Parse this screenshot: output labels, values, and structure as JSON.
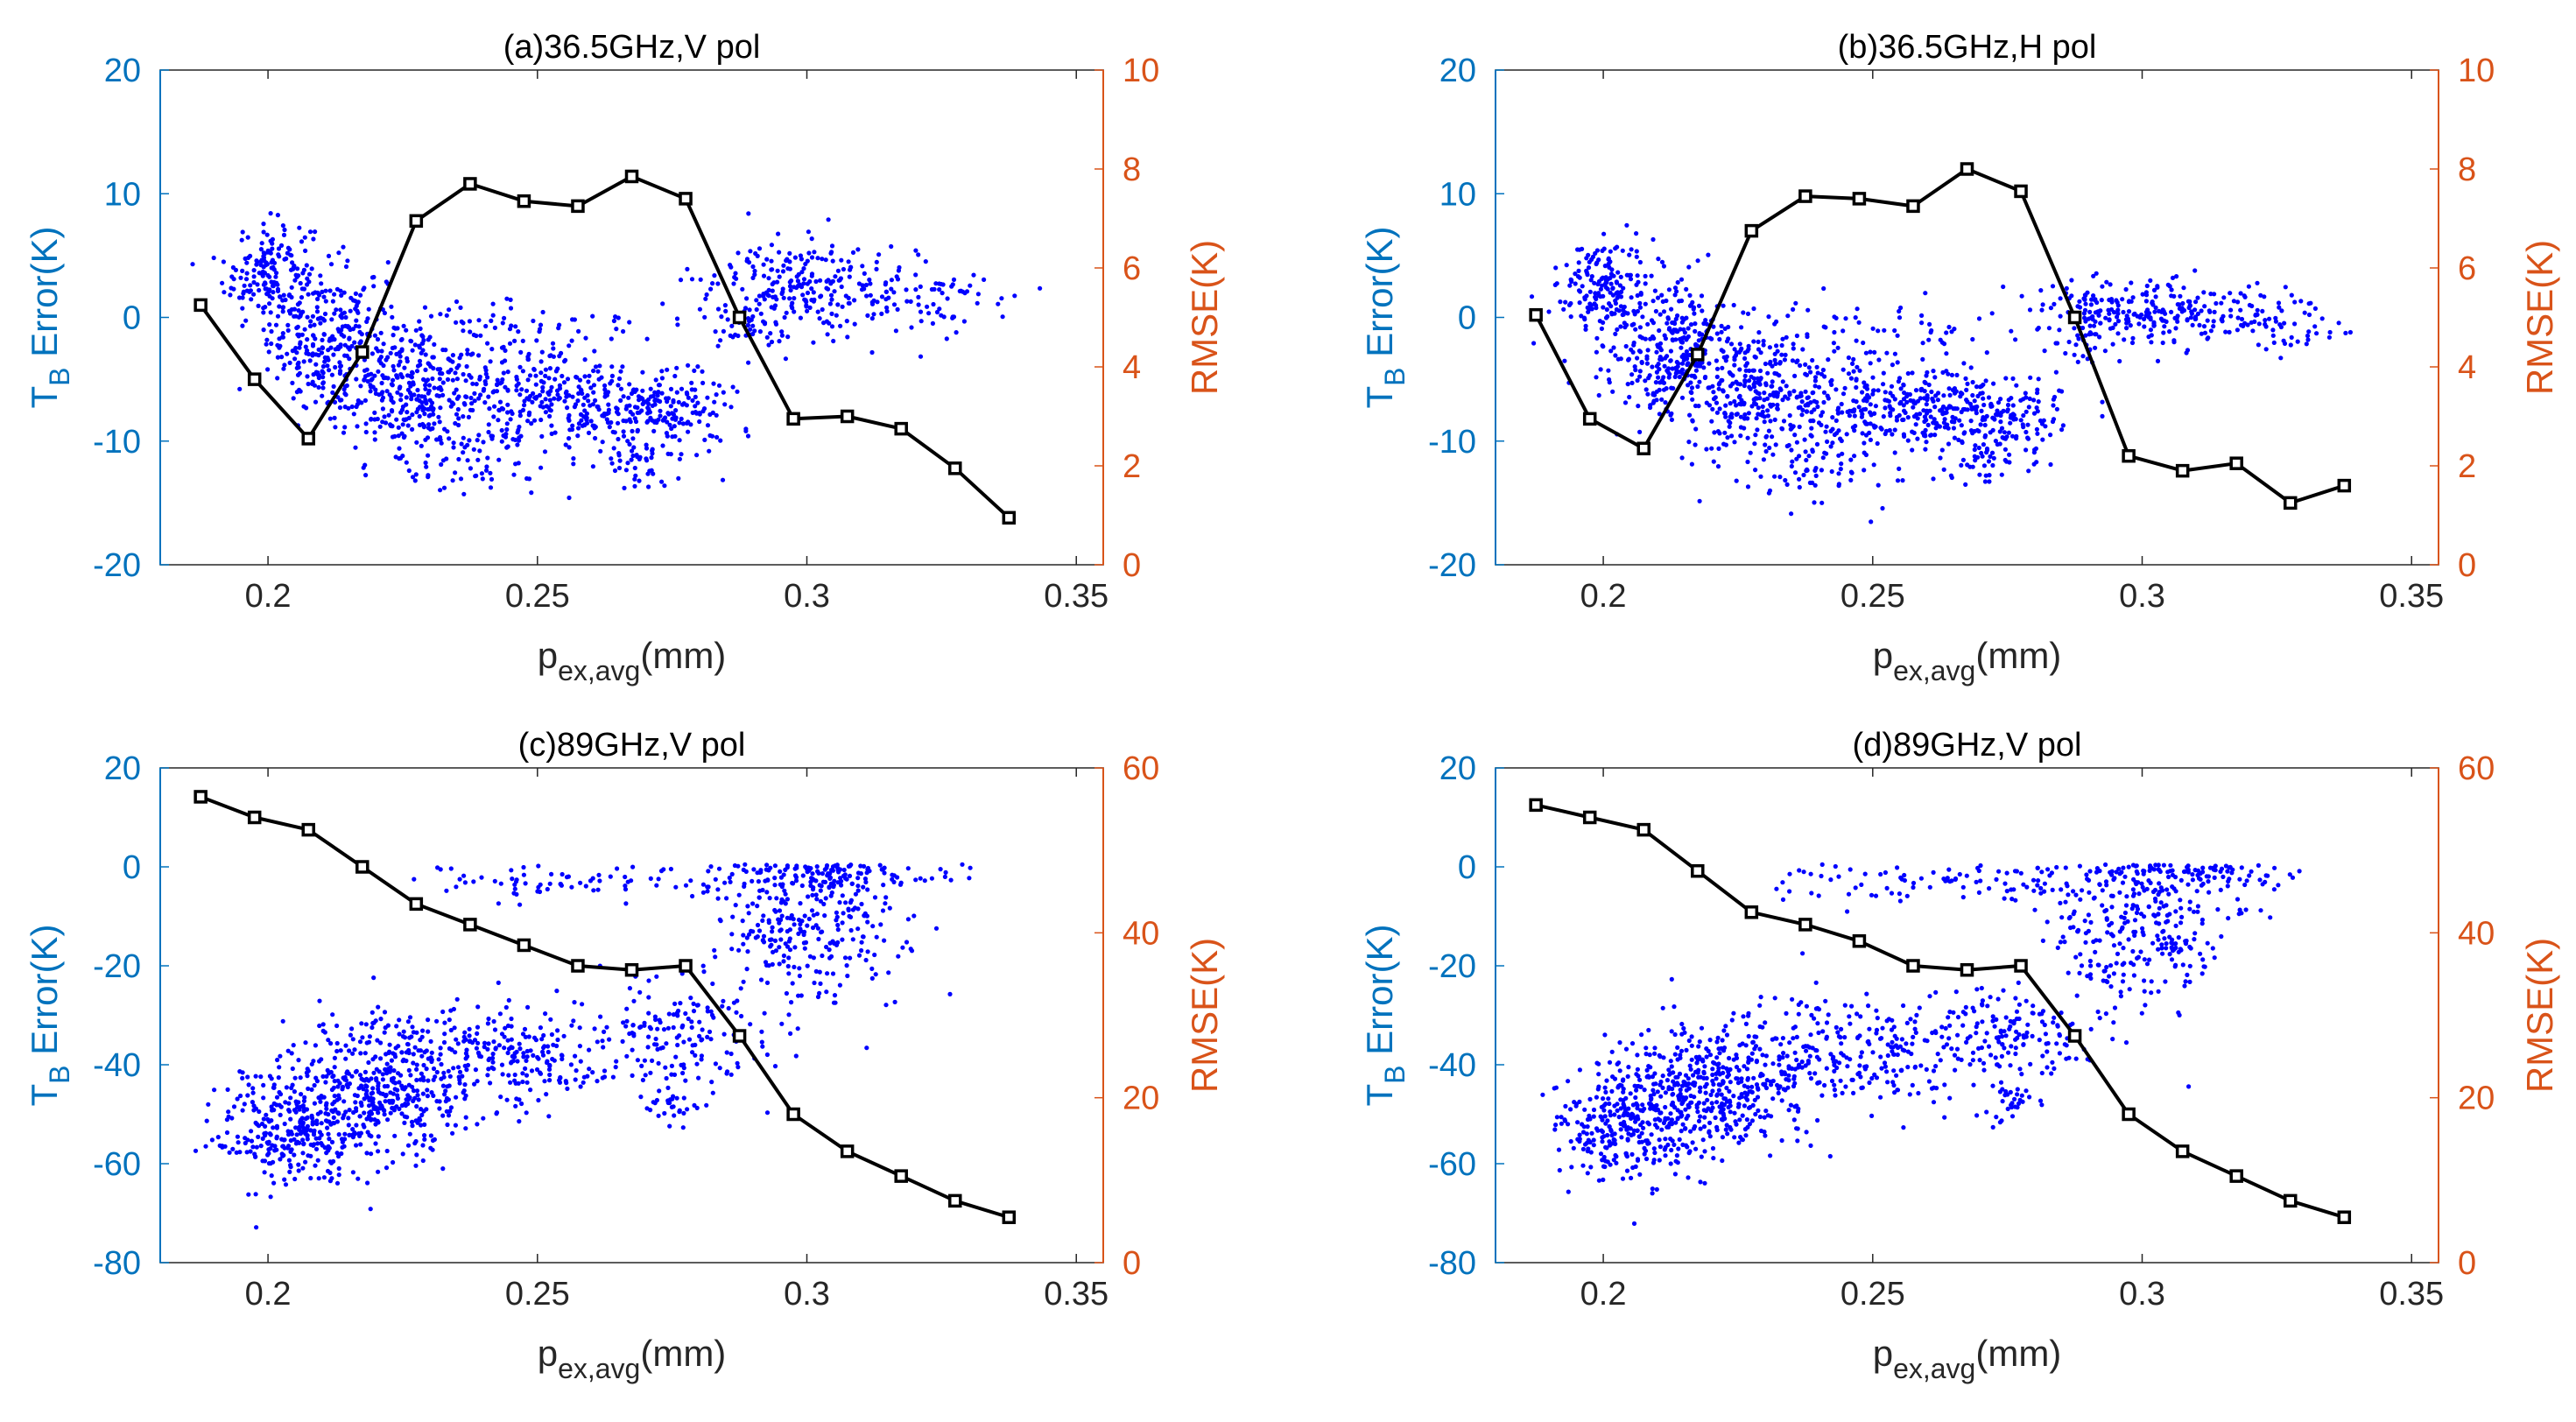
{
  "colors": {
    "left_axis": "#0072BD",
    "right_axis": "#D95319",
    "scatter": "#0000FF",
    "rmse_line": "#000000",
    "frame": "#262626"
  },
  "chart_data": [
    {
      "type": "scatter+line",
      "title": "(a)36.5GHz,V pol",
      "xlabel_main": "p",
      "xlabel_sub": "ex,avg",
      "xlabel_unit": "(mm)",
      "ylabel_left_main": "T",
      "ylabel_left_sub": "B",
      "ylabel_left_rest": " Error(K)",
      "ylabel_right": "RMSE(K)",
      "xlim": [
        0.18,
        0.355
      ],
      "ylim_left": [
        -20,
        20
      ],
      "ylim_right": [
        0,
        10
      ],
      "x_ticks": [
        0.2,
        0.25,
        0.3,
        0.35
      ],
      "x_tick_labels": [
        "0.2",
        "0.25",
        "0.3",
        "0.35"
      ],
      "left_ticks": [
        -20,
        -10,
        0,
        10,
        20
      ],
      "left_tick_labels": [
        "-20",
        "-10",
        "0",
        "10",
        "20"
      ],
      "right_ticks": [
        0,
        2,
        4,
        6,
        8,
        10
      ],
      "right_tick_labels": [
        "0",
        "2",
        "4",
        "6",
        "8",
        "10"
      ],
      "rmse_series": {
        "name": "RMSE",
        "x": [
          0.1875,
          0.1975,
          0.2075,
          0.2175,
          0.2275,
          0.2375,
          0.2475,
          0.2575,
          0.2675,
          0.2775,
          0.2875,
          0.2975,
          0.3075,
          0.3175,
          0.3275,
          0.3375
        ],
        "y": [
          5.25,
          3.75,
          2.55,
          4.3,
          6.95,
          7.7,
          7.35,
          7.25,
          7.85,
          7.4,
          5.0,
          2.95,
          3.0,
          2.75,
          1.95,
          0.95
        ]
      },
      "scatter_clusters": [
        {
          "x": 0.2,
          "y": 3.5,
          "sx": 0.004,
          "sy": 2.2,
          "n": 170
        },
        {
          "x": 0.212,
          "y": -2.0,
          "sx": 0.006,
          "sy": 3.0,
          "n": 280
        },
        {
          "x": 0.226,
          "y": -5.5,
          "sx": 0.007,
          "sy": 3.0,
          "n": 260
        },
        {
          "x": 0.245,
          "y": -6.5,
          "sx": 0.01,
          "sy": 2.5,
          "n": 230
        },
        {
          "x": 0.262,
          "y": -7.0,
          "sx": 0.008,
          "sy": 1.5,
          "n": 160
        },
        {
          "x": 0.276,
          "y": -7.5,
          "sx": 0.006,
          "sy": 1.6,
          "n": 120
        },
        {
          "x": 0.27,
          "y": -11.5,
          "sx": 0.004,
          "sy": 1.2,
          "n": 45
        },
        {
          "x": 0.238,
          "y": -12.0,
          "sx": 0.008,
          "sy": 1.3,
          "n": 55
        },
        {
          "x": 0.3,
          "y": 2.5,
          "sx": 0.01,
          "sy": 1.8,
          "n": 250
        },
        {
          "x": 0.325,
          "y": 1.0,
          "sx": 0.007,
          "sy": 1.5,
          "n": 60
        },
        {
          "x": 0.29,
          "y": -1.0,
          "sx": 0.004,
          "sy": 1.0,
          "n": 30
        },
        {
          "x": 0.245,
          "y": -0.5,
          "sx": 0.015,
          "sy": 1.2,
          "n": 60
        }
      ]
    },
    {
      "type": "scatter+line",
      "title": "(b)36.5GHz,H pol",
      "xlabel_main": "p",
      "xlabel_sub": "ex,avg",
      "xlabel_unit": "(mm)",
      "ylabel_left_main": "T",
      "ylabel_left_sub": "B",
      "ylabel_left_rest": " Error(K)",
      "ylabel_right": "RMSE(K)",
      "xlim": [
        0.18,
        0.355
      ],
      "ylim_left": [
        -20,
        20
      ],
      "ylim_right": [
        0,
        10
      ],
      "x_ticks": [
        0.2,
        0.25,
        0.3,
        0.35
      ],
      "x_tick_labels": [
        "0.2",
        "0.25",
        "0.3",
        "0.35"
      ],
      "left_ticks": [
        -20,
        -10,
        0,
        10,
        20
      ],
      "left_tick_labels": [
        "-20",
        "-10",
        "0",
        "10",
        "20"
      ],
      "right_ticks": [
        0,
        2,
        4,
        6,
        8,
        10
      ],
      "right_tick_labels": [
        "0",
        "2",
        "4",
        "6",
        "8",
        "10"
      ],
      "rmse_series": {
        "name": "RMSE",
        "x": [
          0.1875,
          0.1975,
          0.2075,
          0.2175,
          0.2275,
          0.2375,
          0.2475,
          0.2575,
          0.2675,
          0.2775,
          0.2875,
          0.2975,
          0.3075,
          0.3175,
          0.3275,
          0.3375
        ],
        "y": [
          5.05,
          2.95,
          2.35,
          4.25,
          6.75,
          7.45,
          7.4,
          7.25,
          8.0,
          7.55,
          5.0,
          2.2,
          1.9,
          2.05,
          1.25,
          1.6
        ]
      },
      "scatter_clusters": [
        {
          "x": 0.2,
          "y": 2.5,
          "sx": 0.004,
          "sy": 2.0,
          "n": 170
        },
        {
          "x": 0.212,
          "y": -2.5,
          "sx": 0.006,
          "sy": 2.8,
          "n": 280
        },
        {
          "x": 0.226,
          "y": -6.0,
          "sx": 0.007,
          "sy": 2.8,
          "n": 260
        },
        {
          "x": 0.245,
          "y": -7.0,
          "sx": 0.01,
          "sy": 2.3,
          "n": 230
        },
        {
          "x": 0.262,
          "y": -7.5,
          "sx": 0.008,
          "sy": 1.5,
          "n": 160
        },
        {
          "x": 0.276,
          "y": -8.0,
          "sx": 0.006,
          "sy": 1.6,
          "n": 120
        },
        {
          "x": 0.27,
          "y": -11.5,
          "sx": 0.004,
          "sy": 1.2,
          "n": 45
        },
        {
          "x": 0.238,
          "y": -12.5,
          "sx": 0.008,
          "sy": 1.3,
          "n": 55
        },
        {
          "x": 0.3,
          "y": 0.5,
          "sx": 0.01,
          "sy": 1.3,
          "n": 250
        },
        {
          "x": 0.325,
          "y": -0.5,
          "sx": 0.007,
          "sy": 1.2,
          "n": 60
        },
        {
          "x": 0.29,
          "y": -2.0,
          "sx": 0.004,
          "sy": 1.0,
          "n": 30
        },
        {
          "x": 0.245,
          "y": -1.0,
          "sx": 0.015,
          "sy": 1.2,
          "n": 60
        }
      ]
    },
    {
      "type": "scatter+line",
      "title": "(c)89GHz,V pol",
      "xlabel_main": "p",
      "xlabel_sub": "ex,avg",
      "xlabel_unit": "(mm)",
      "ylabel_left_main": "T",
      "ylabel_left_sub": "B",
      "ylabel_left_rest": " Error(K)",
      "ylabel_right": "RMSE(K)",
      "xlim": [
        0.18,
        0.355
      ],
      "ylim_left": [
        -80,
        20
      ],
      "ylim_right": [
        0,
        60
      ],
      "x_ticks": [
        0.2,
        0.25,
        0.3,
        0.35
      ],
      "x_tick_labels": [
        "0.2",
        "0.25",
        "0.3",
        "0.35"
      ],
      "left_ticks": [
        -80,
        -60,
        -40,
        -20,
        0,
        20
      ],
      "left_tick_labels": [
        "-80",
        "-60",
        "-40",
        "-20",
        "0",
        "20"
      ],
      "right_ticks": [
        0,
        20,
        40,
        60
      ],
      "right_tick_labels": [
        "0",
        "20",
        "40",
        "60"
      ],
      "rmse_series": {
        "name": "RMSE",
        "x": [
          0.1875,
          0.1975,
          0.2075,
          0.2175,
          0.2275,
          0.2375,
          0.2475,
          0.2575,
          0.2675,
          0.2775,
          0.2875,
          0.2975,
          0.3075,
          0.3175,
          0.3275,
          0.3375
        ],
        "y": [
          56.5,
          54.0,
          52.5,
          48.0,
          43.5,
          41.0,
          38.5,
          36.0,
          35.5,
          36.0,
          27.5,
          18.0,
          13.5,
          10.5,
          7.5,
          5.5
        ]
      },
      "scatter_clusters": [
        {
          "x": 0.205,
          "y": -53.0,
          "sx": 0.007,
          "sy": 6.0,
          "n": 320
        },
        {
          "x": 0.22,
          "y": -45.0,
          "sx": 0.008,
          "sy": 7.0,
          "n": 380
        },
        {
          "x": 0.245,
          "y": -38.0,
          "sx": 0.012,
          "sy": 5.5,
          "n": 260
        },
        {
          "x": 0.275,
          "y": -34.0,
          "sx": 0.008,
          "sy": 5.0,
          "n": 140
        },
        {
          "x": 0.275,
          "y": -48.0,
          "sx": 0.003,
          "sy": 2.0,
          "n": 30
        },
        {
          "x": 0.3,
          "y": -12.0,
          "sx": 0.009,
          "sy": 9.0,
          "n": 300
        },
        {
          "x": 0.262,
          "y": -3.0,
          "sx": 0.018,
          "sy": 2.0,
          "n": 90
        },
        {
          "x": 0.31,
          "y": -2.0,
          "sx": 0.012,
          "sy": 2.0,
          "n": 80
        }
      ]
    },
    {
      "type": "scatter+line",
      "title": "(d)89GHz,V pol",
      "xlabel_main": "p",
      "xlabel_sub": "ex,avg",
      "xlabel_unit": "(mm)",
      "ylabel_left_main": "T",
      "ylabel_left_sub": "B",
      "ylabel_left_rest": " Error(K)",
      "ylabel_right": "RMSE(K)",
      "xlim": [
        0.18,
        0.355
      ],
      "ylim_left": [
        -80,
        20
      ],
      "ylim_right": [
        0,
        60
      ],
      "x_ticks": [
        0.2,
        0.25,
        0.3,
        0.35
      ],
      "x_tick_labels": [
        "0.2",
        "0.25",
        "0.3",
        "0.35"
      ],
      "left_ticks": [
        -80,
        -60,
        -40,
        -20,
        0,
        20
      ],
      "left_tick_labels": [
        "-80",
        "-60",
        "-40",
        "-20",
        "0",
        "20"
      ],
      "right_ticks": [
        0,
        20,
        40,
        60
      ],
      "right_tick_labels": [
        "0",
        "20",
        "40",
        "60"
      ],
      "rmse_series": {
        "name": "RMSE",
        "x": [
          0.1875,
          0.1975,
          0.2075,
          0.2175,
          0.2275,
          0.2375,
          0.2475,
          0.2575,
          0.2675,
          0.2775,
          0.2875,
          0.2975,
          0.3075,
          0.3175,
          0.3275,
          0.3375
        ],
        "y": [
          55.5,
          54.0,
          52.5,
          47.5,
          42.5,
          41.0,
          39.0,
          36.0,
          35.5,
          36.0,
          27.5,
          18.0,
          13.5,
          10.5,
          7.5,
          5.5
        ]
      },
      "scatter_clusters": [
        {
          "x": 0.205,
          "y": -52.0,
          "sx": 0.007,
          "sy": 6.0,
          "n": 320
        },
        {
          "x": 0.22,
          "y": -45.0,
          "sx": 0.008,
          "sy": 7.0,
          "n": 380
        },
        {
          "x": 0.245,
          "y": -38.0,
          "sx": 0.012,
          "sy": 5.5,
          "n": 260
        },
        {
          "x": 0.275,
          "y": -34.0,
          "sx": 0.008,
          "sy": 5.0,
          "n": 140
        },
        {
          "x": 0.275,
          "y": -48.0,
          "sx": 0.003,
          "sy": 2.0,
          "n": 30
        },
        {
          "x": 0.3,
          "y": -12.0,
          "sx": 0.009,
          "sy": 9.0,
          "n": 300
        },
        {
          "x": 0.262,
          "y": -3.0,
          "sx": 0.018,
          "sy": 2.0,
          "n": 90
        },
        {
          "x": 0.31,
          "y": -2.0,
          "sx": 0.012,
          "sy": 2.0,
          "n": 80
        }
      ]
    }
  ]
}
